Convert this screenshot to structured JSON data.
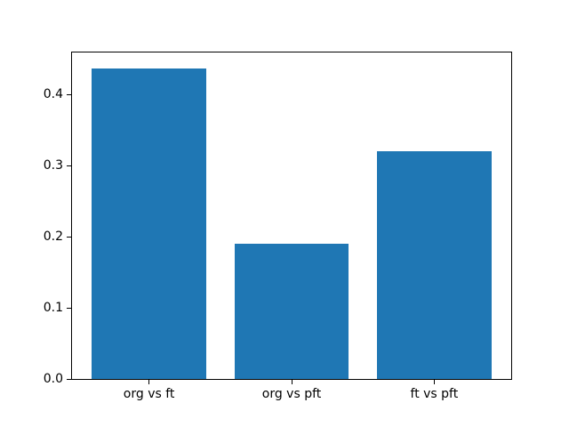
{
  "figure": {
    "background": "#ffffff"
  },
  "chart_data": {
    "type": "bar",
    "categories": [
      "org vs ft",
      "org vs pft",
      "ft vs pft"
    ],
    "values": [
      0.437,
      0.19,
      0.32
    ],
    "title": "",
    "xlabel": "",
    "ylabel": "",
    "ylim": [
      0,
      0.459
    ],
    "yticks": [
      0.0,
      0.1,
      0.2,
      0.3,
      0.4
    ],
    "ytick_labels": [
      "0.0",
      "0.1",
      "0.2",
      "0.3",
      "0.4"
    ],
    "grid": false,
    "legend": "none",
    "bar_color": "#1f77b4",
    "bar_width_frac": 0.8,
    "x_margin_frac": 0.05,
    "axis_color": "#000000",
    "tick_label_color": "#000000"
  }
}
